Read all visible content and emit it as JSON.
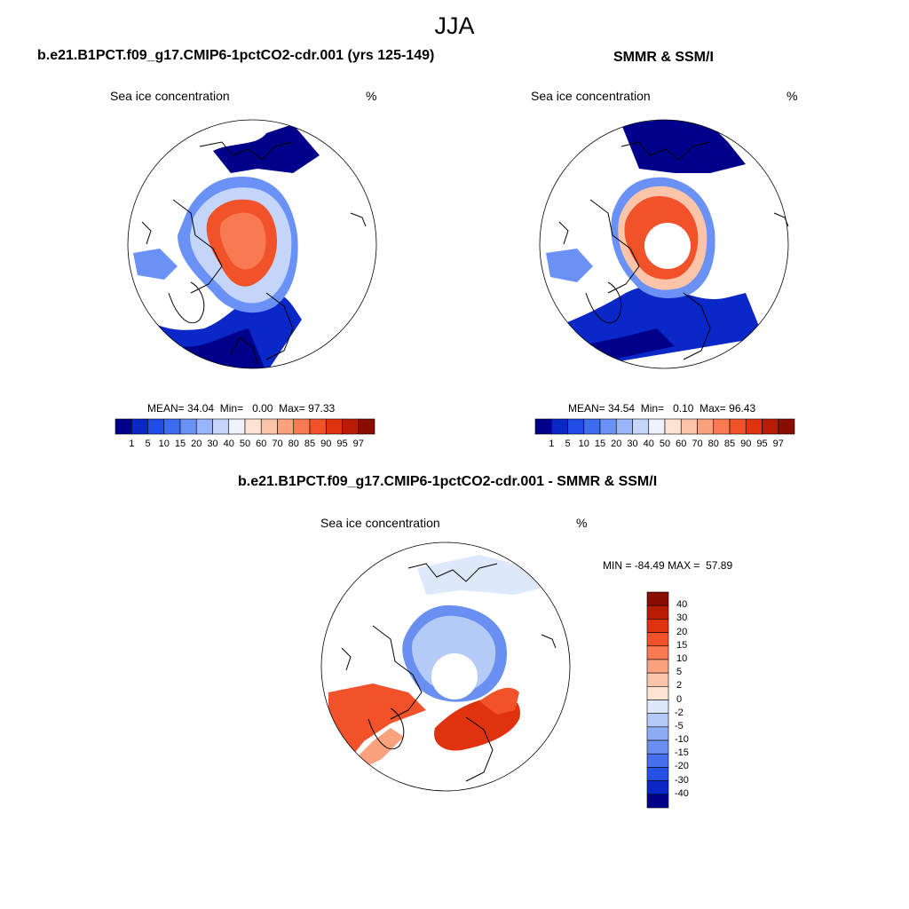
{
  "figure": {
    "title": "JJA"
  },
  "model_panel": {
    "title": "b.e21.B1PCT.f09_g17.CMIP6-1pctCO2-cdr.001 (yrs 125-149)",
    "field_label": "Sea ice concentration",
    "units": "%",
    "mean_label": "MEAN=",
    "mean": "34.04",
    "min_label": "Min=",
    "min": "0.00",
    "max_label": "Max=",
    "max": "97.33"
  },
  "obs_panel": {
    "title": "SMMR & SSM/I",
    "field_label": "Sea ice concentration",
    "units": "%",
    "mean_label": "MEAN=",
    "mean": "34.54",
    "min_label": "Min=",
    "min": "0.10",
    "max_label": "Max=",
    "max": "96.43"
  },
  "diff_panel": {
    "title": "b.e21.B1PCT.f09_g17.CMIP6-1pctCO2-cdr.001 - SMMR & SSM/I",
    "field_label": "Sea ice concentration",
    "units": "%",
    "min_label": "MIN =",
    "min": "-84.49",
    "max_label": "MAX =",
    "max": "57.89"
  },
  "concentration_colorbar": {
    "levels": [
      "1",
      "5",
      "10",
      "15",
      "20",
      "30",
      "40",
      "50",
      "60",
      "70",
      "80",
      "85",
      "90",
      "95",
      "97"
    ],
    "colors": [
      "#00008b",
      "#0a28c8",
      "#1f4be6",
      "#3d6cf0",
      "#6a91f5",
      "#9ab5f7",
      "#c4d5f9",
      "#eef3fb",
      "#fde3d2",
      "#fcc5aa",
      "#faa27e",
      "#f77a52",
      "#f2522a",
      "#e0320f",
      "#b81c05",
      "#8a0e00"
    ]
  },
  "difference_colorbar": {
    "levels": [
      "40",
      "30",
      "20",
      "15",
      "10",
      "5",
      "2",
      "0",
      "-2",
      "-5",
      "-10",
      "-15",
      "-20",
      "-30",
      "-40"
    ],
    "colors": [
      "#8a0e00",
      "#b81c05",
      "#e0320f",
      "#f2522a",
      "#f77a52",
      "#faa27e",
      "#fcc5aa",
      "#fde3d2",
      "#dde8fb",
      "#b4cbf8",
      "#8eabf5",
      "#6a8ff2",
      "#4570ee",
      "#2550e6",
      "#0a28c8",
      "#00008b"
    ]
  }
}
